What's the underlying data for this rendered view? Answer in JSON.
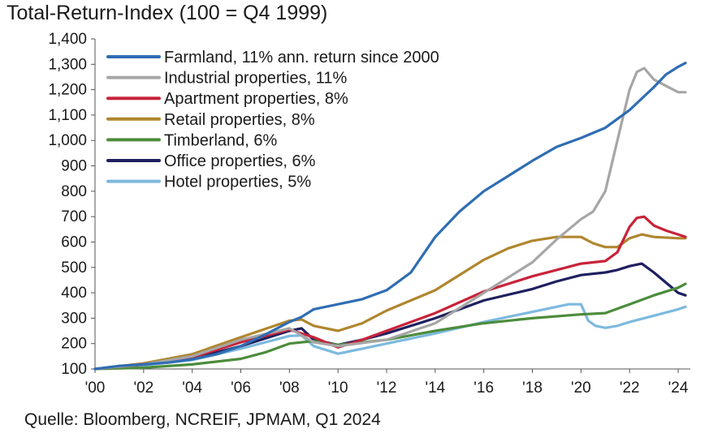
{
  "chart_data": {
    "type": "line",
    "title": "Total-Return-Index (100 = Q4 1999)",
    "source": "Quelle: Bloomberg, NCREIF, JPMAM, Q1 2024",
    "xlabel": "",
    "ylabel": "",
    "xlim": [
      2000,
      2024.5
    ],
    "ylim": [
      100,
      1400
    ],
    "yticks": [
      100,
      200,
      300,
      400,
      500,
      600,
      700,
      800,
      900,
      1000,
      1100,
      1200,
      1300,
      1400
    ],
    "ytick_labels": [
      "100",
      "200",
      "300",
      "400",
      "500",
      "600",
      "700",
      "800",
      "900",
      "1,000",
      "1,100",
      "1,200",
      "1,300",
      "1,400"
    ],
    "xticks": [
      2000,
      2002,
      2004,
      2006,
      2008,
      2010,
      2012,
      2014,
      2016,
      2018,
      2020,
      2022,
      2024
    ],
    "xtick_labels": [
      "'00",
      "'02",
      "'04",
      "'06",
      "'08",
      "'10",
      "'12",
      "'14",
      "'16",
      "'18",
      "'20",
      "'22",
      "'24"
    ],
    "grid": false,
    "legend": "top-left",
    "series": [
      {
        "name": "Farmland, 11% ann. return since 2000",
        "color": "#2f6db3",
        "x": [
          2000,
          2001,
          2002,
          2003,
          2004,
          2005,
          2006,
          2007,
          2008,
          2008.5,
          2009,
          2010,
          2011,
          2012,
          2013,
          2014,
          2015,
          2016,
          2017,
          2018,
          2019,
          2020,
          2021,
          2022,
          2023,
          2023.5,
          2024,
          2024.3
        ],
        "y": [
          100,
          112,
          118,
          125,
          138,
          158,
          190,
          235,
          285,
          305,
          335,
          355,
          375,
          410,
          480,
          620,
          720,
          800,
          860,
          920,
          975,
          1010,
          1050,
          1120,
          1210,
          1260,
          1290,
          1305
        ]
      },
      {
        "name": "Industrial properties, 11%",
        "color": "#a6a6a6",
        "x": [
          2000,
          2002,
          2004,
          2006,
          2008,
          2009,
          2010,
          2012,
          2014,
          2016,
          2018,
          2019,
          2020,
          2020.5,
          2021,
          2021.5,
          2022,
          2022.3,
          2022.6,
          2023,
          2023.5,
          2024,
          2024.3
        ],
        "y": [
          100,
          118,
          150,
          215,
          260,
          205,
          190,
          215,
          280,
          400,
          520,
          610,
          690,
          720,
          800,
          1000,
          1200,
          1270,
          1285,
          1240,
          1215,
          1190,
          1190
        ]
      },
      {
        "name": "Apartment properties, 8%",
        "color": "#c8233a",
        "x": [
          2000,
          2002,
          2004,
          2006,
          2008,
          2009,
          2010,
          2011,
          2012,
          2014,
          2016,
          2018,
          2019,
          2020,
          2021,
          2021.5,
          2022,
          2022.3,
          2022.6,
          2023,
          2023.5,
          2024,
          2024.3
        ],
        "y": [
          100,
          118,
          145,
          205,
          255,
          225,
          185,
          215,
          250,
          320,
          405,
          465,
          490,
          515,
          525,
          560,
          660,
          695,
          700,
          665,
          645,
          630,
          620
        ]
      },
      {
        "name": "Retail properties, 8%",
        "color": "#b0862f",
        "x": [
          2000,
          2002,
          2004,
          2006,
          2008,
          2008.5,
          2009,
          2010,
          2011,
          2012,
          2014,
          2016,
          2017,
          2018,
          2019,
          2020,
          2020.5,
          2021,
          2021.5,
          2022,
          2022.5,
          2023,
          2024,
          2024.3
        ],
        "y": [
          100,
          122,
          158,
          225,
          290,
          295,
          270,
          250,
          280,
          330,
          410,
          530,
          575,
          605,
          620,
          620,
          595,
          580,
          580,
          615,
          630,
          620,
          615,
          615
        ]
      },
      {
        "name": "Timberland, 6%",
        "color": "#4c8c3c",
        "x": [
          2000,
          2002,
          2004,
          2006,
          2007,
          2008,
          2009,
          2010,
          2012,
          2014,
          2016,
          2018,
          2020,
          2021,
          2022,
          2023,
          2024,
          2024.3
        ],
        "y": [
          100,
          105,
          118,
          140,
          165,
          200,
          210,
          195,
          215,
          250,
          280,
          300,
          315,
          320,
          355,
          390,
          420,
          435
        ]
      },
      {
        "name": "Office properties, 6%",
        "color": "#1f2060",
        "x": [
          2000,
          2002,
          2004,
          2006,
          2008,
          2008.5,
          2009,
          2010,
          2011,
          2012,
          2014,
          2016,
          2018,
          2019,
          2020,
          2021,
          2021.5,
          2022,
          2022.5,
          2023,
          2024,
          2024.3
        ],
        "y": [
          100,
          118,
          140,
          190,
          250,
          260,
          215,
          195,
          215,
          240,
          300,
          370,
          415,
          445,
          470,
          480,
          490,
          505,
          515,
          480,
          400,
          390
        ]
      },
      {
        "name": "Hotel properties, 5%",
        "color": "#7db9de",
        "x": [
          2000,
          2002,
          2004,
          2006,
          2008,
          2008.5,
          2009,
          2010,
          2011,
          2012,
          2014,
          2016,
          2018,
          2019,
          2019.5,
          2020,
          2020.3,
          2020.6,
          2021,
          2021.5,
          2022,
          2023,
          2024,
          2024.3
        ],
        "y": [
          100,
          115,
          135,
          180,
          230,
          232,
          190,
          160,
          180,
          200,
          240,
          285,
          325,
          345,
          355,
          355,
          290,
          270,
          262,
          270,
          285,
          310,
          335,
          345
        ]
      }
    ]
  }
}
